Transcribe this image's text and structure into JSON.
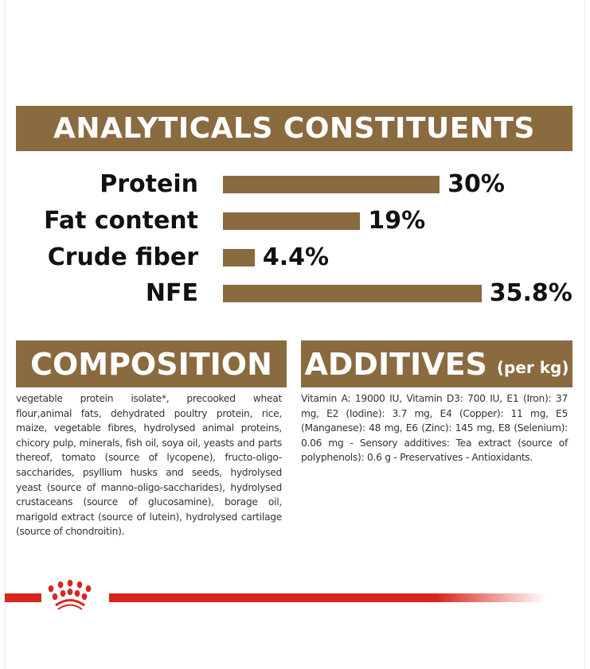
{
  "analyticals": {
    "title": "ANALYTICALS CONSTITUENTS",
    "bar_color": "#8a6a3f",
    "items": [
      {
        "label": "Protein",
        "value": 30,
        "display": "30%"
      },
      {
        "label": "Fat content",
        "value": 19,
        "display": "19%"
      },
      {
        "label": "Crude fiber",
        "value": 4.4,
        "display": "4.4%"
      },
      {
        "label": "NFE",
        "value": 35.8,
        "display": "35.8%"
      }
    ]
  },
  "composition": {
    "title": "COMPOSITION",
    "text": "vegetable protein isolate*, precooked wheat flour,animal fats, dehydrated poultry protein, rice, maize, vegetable fibres, hydrolysed animal proteins, chicory pulp, minerals, fish oil, soya oil, yeasts and parts thereof, tomato (source of lycopene), fructo-oligo-saccharides, psyllium husks and seeds, hydrolysed yeast (source of manno-oligo-saccharides), hydrolysed crustaceans (source of glucosamine), borage oil, marigold extract (source of lutein), hydrolysed cartilage (source of chondroitin)."
  },
  "additives": {
    "title": "ADDITIVES",
    "unit": "(per kg)",
    "text": "Vitamin A: 19000 IU, Vitamin D3: 700 IU, E1 (Iron): 37 mg, E2 (Iodine): 3.7 mg, E4 (Copper): 11 mg, E5 (Manganese): 48 mg, E6 (Zinc): 145 mg, E8 (Selenium): 0.06 mg - Sensory additives: Tea extract (source of polyphenols): 0.6 g - Preservatives - Antioxidants."
  },
  "footer": {
    "logo_icon": "royal-canin-crown-icon",
    "accent": "#d9261c"
  }
}
